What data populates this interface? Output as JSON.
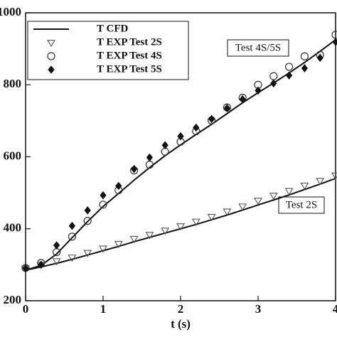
{
  "chart_data": {
    "type": "line",
    "x_label": "t (s)",
    "x": [
      0,
      0.2,
      0.4,
      0.6,
      0.8,
      1.0,
      1.2,
      1.4,
      1.6,
      1.8,
      2.0,
      2.2,
      2.4,
      2.6,
      2.8,
      3.0,
      3.2,
      3.4,
      3.6,
      3.8,
      4.0
    ],
    "xlim": [
      0,
      4
    ],
    "xticks": [
      0,
      1,
      2,
      3,
      4
    ],
    "ylim": [
      200,
      1000
    ],
    "yticks": [
      200,
      400,
      600,
      800,
      1000
    ],
    "legend": "upper left",
    "series": [
      {
        "name": "T CFD",
        "marker": "line",
        "color": "#111111",
        "curves": [
          [
            285,
            298,
            330,
            375,
            420,
            462,
            498,
            535,
            570,
            603,
            633,
            662,
            690,
            720,
            750,
            778,
            805,
            833,
            862,
            893,
            925
          ],
          [
            285,
            294,
            304,
            315,
            327,
            339,
            351,
            364,
            376,
            388,
            400,
            412,
            425,
            438,
            452,
            466,
            480,
            494,
            509,
            524,
            540
          ]
        ]
      },
      {
        "name": "T EXP Test 2S",
        "marker": "triangle",
        "color": "#555555",
        "values": [
          290,
          300,
          310,
          320,
          333,
          345,
          358,
          372,
          383,
          395,
          407,
          420,
          433,
          448,
          462,
          478,
          492,
          505,
          520,
          533,
          548
        ]
      },
      {
        "name": "T EXP Test 4S",
        "marker": "circle",
        "color": "#333333",
        "values": [
          291,
          305,
          335,
          378,
          422,
          467,
          507,
          562,
          578,
          614,
          642,
          671,
          701,
          737,
          764,
          800,
          824,
          850,
          879,
          883,
          939
        ]
      },
      {
        "name": "T EXP Test 5S",
        "marker": "diamond",
        "color": "#111111",
        "values": [
          290,
          300,
          354,
          408,
          451,
          493,
          519,
          566,
          598,
          632,
          657,
          681,
          705,
          735,
          760,
          784,
          804,
          826,
          846,
          875,
          919
        ]
      }
    ],
    "annotations": [
      "Test 4S/5S",
      "Test 2S"
    ]
  }
}
